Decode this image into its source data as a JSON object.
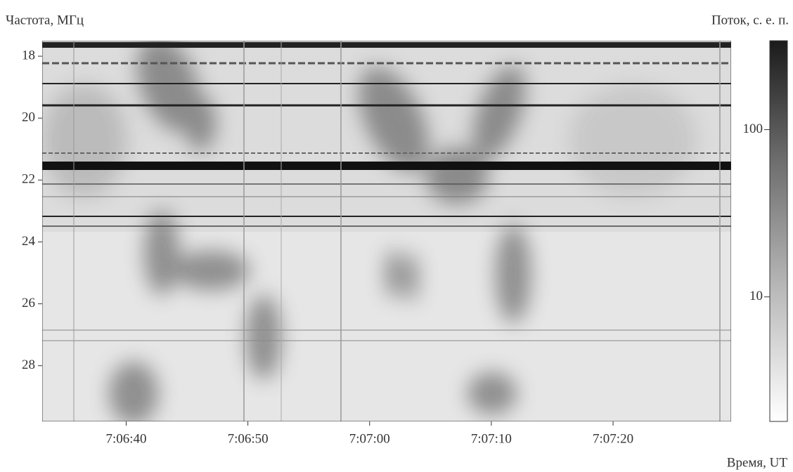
{
  "chart_data": {
    "type": "spectrogram",
    "ylabel": "Частота, МГц",
    "xlabel": "Время, UT",
    "colorbar_label": "Поток, с. е. п.",
    "xlim": [
      25593.1,
      25649.7
    ],
    "xticks": [
      {
        "value": 25600,
        "label": "7:06:40"
      },
      {
        "value": 25610,
        "label": "7:06:50"
      },
      {
        "value": 25620,
        "label": "7:07:00"
      },
      {
        "value": 25630,
        "label": "7:07:10"
      },
      {
        "value": 25640,
        "label": "7:07:20"
      }
    ],
    "ylim": [
      17.5,
      29.8
    ],
    "yticks": [
      18,
      20,
      22,
      24,
      26,
      28
    ],
    "y_inverted": true,
    "clim": [
      1.8,
      340
    ],
    "cticks": [
      10,
      100
    ],
    "color_scale": "log"
  }
}
